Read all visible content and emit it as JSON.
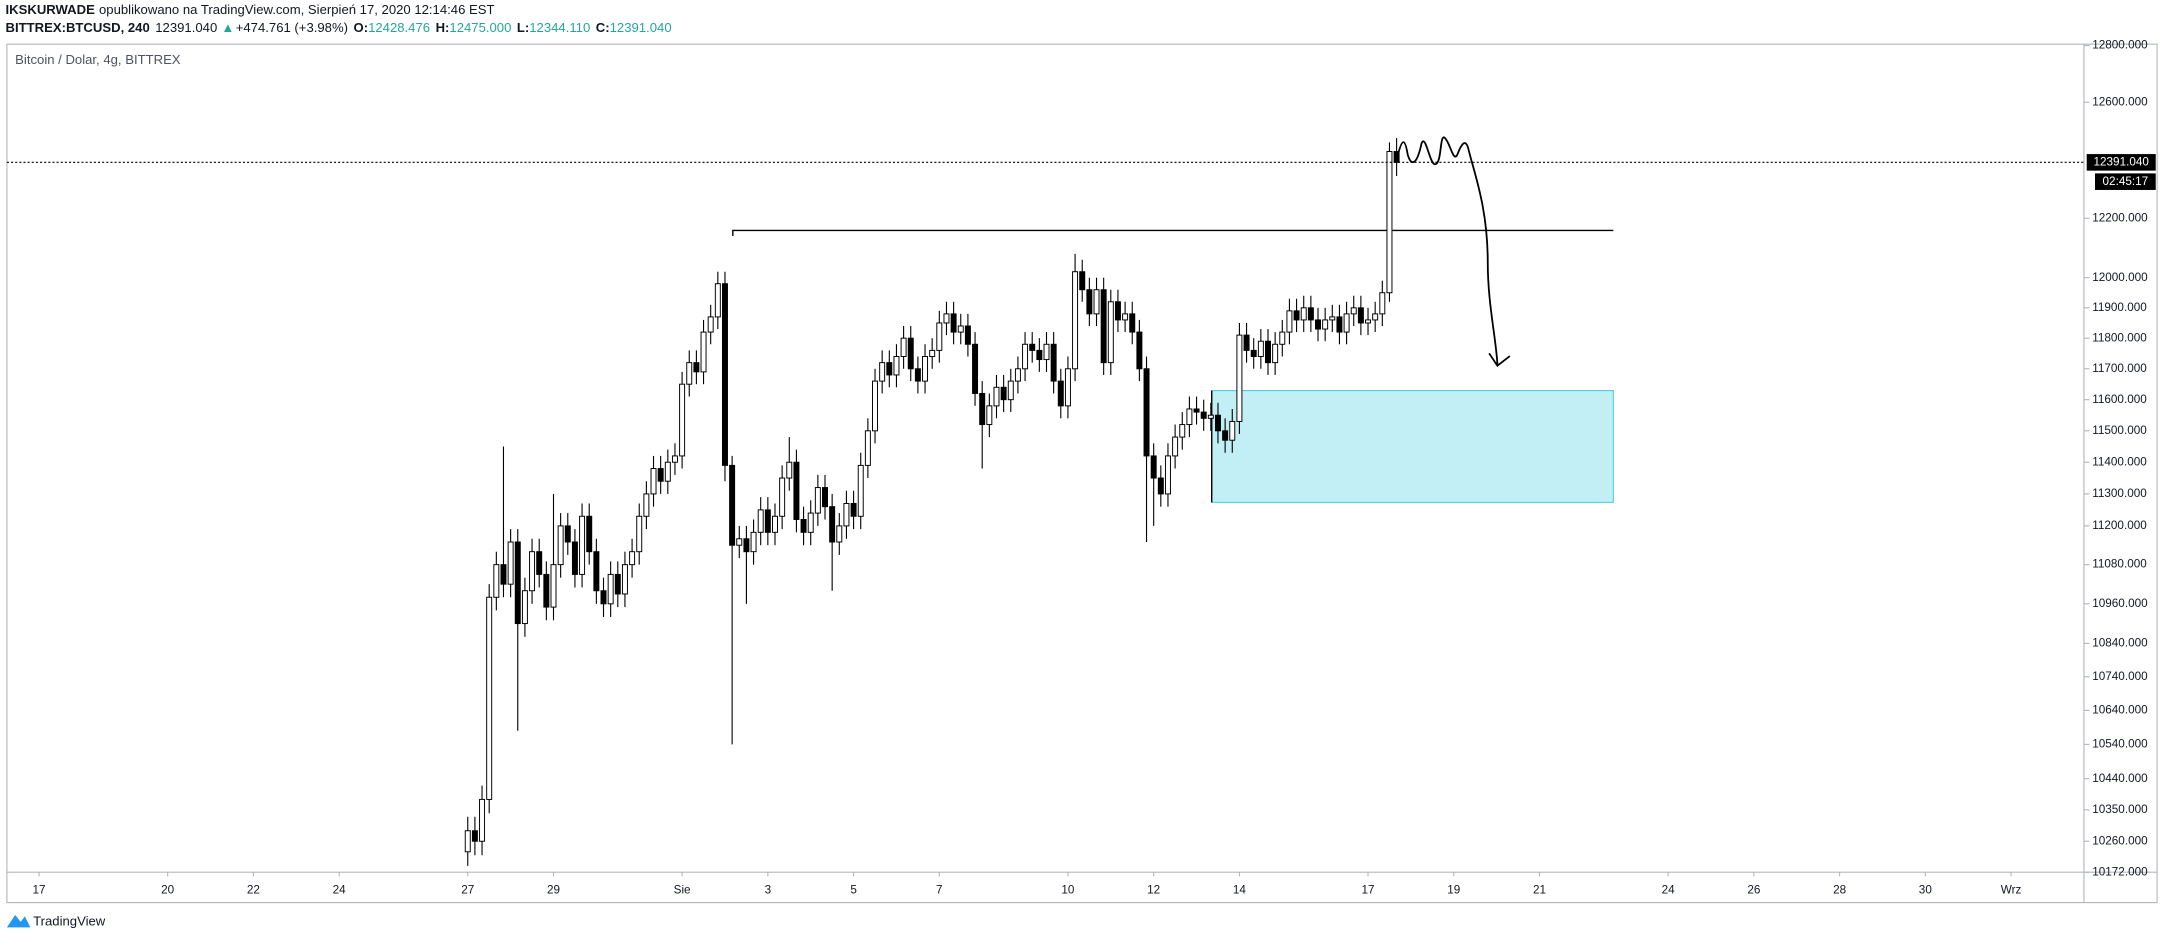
{
  "header": {
    "author": "IKSKURWADE",
    "published": "opublikowano na TradingView.com, Sierpień 17, 2020 12:14:46 EST",
    "symbol": "BITTREX:BTCUSD, 240",
    "price": "12391.040",
    "arrow": "▲",
    "change": "+474.761 (+3.98%)",
    "ohlc": [
      {
        "label": "O:",
        "value": "12428.476"
      },
      {
        "label": "H:",
        "value": "12475.000"
      },
      {
        "label": "L:",
        "value": "12344.110"
      },
      {
        "label": "C:",
        "value": "12391.040"
      }
    ]
  },
  "footer": {
    "brand": "TradingView"
  },
  "chart_data": {
    "type": "candlestick",
    "title": "Bitcoin / Dolar, 4g, BITTREX",
    "log_scale": true,
    "grid": false,
    "up_color": "#ffffff",
    "down_color": "#000000",
    "wick_color": "#000000",
    "xlim": [
      -64.5,
      226.2
    ],
    "ylim": [
      10172,
      12800
    ],
    "xticks": [
      {
        "value": -60,
        "label": "17"
      },
      {
        "value": -42,
        "label": "20"
      },
      {
        "value": -30,
        "label": "22"
      },
      {
        "value": -18,
        "label": "24"
      },
      {
        "value": 0,
        "label": "27"
      },
      {
        "value": 12,
        "label": "29"
      },
      {
        "value": 30,
        "label": "Sie"
      },
      {
        "value": 42,
        "label": "3"
      },
      {
        "value": 54,
        "label": "5"
      },
      {
        "value": 66,
        "label": "7"
      },
      {
        "value": 84,
        "label": "10"
      },
      {
        "value": 96,
        "label": "12"
      },
      {
        "value": 108,
        "label": "14"
      },
      {
        "value": 126,
        "label": "17"
      },
      {
        "value": 138,
        "label": "19"
      },
      {
        "value": 150,
        "label": "21"
      },
      {
        "value": 168,
        "label": "24"
      },
      {
        "value": 180,
        "label": "26"
      },
      {
        "value": 192,
        "label": "28"
      },
      {
        "value": 204,
        "label": "30"
      },
      {
        "value": 216,
        "label": "Wrz"
      }
    ],
    "yticks": [
      {
        "value": 12800,
        "label": "12800.000"
      },
      {
        "value": 12600,
        "label": "12600.000"
      },
      {
        "value": 12200,
        "label": "12200.000"
      },
      {
        "value": 12000,
        "label": "12000.000"
      },
      {
        "value": 11900,
        "label": "11900.000"
      },
      {
        "value": 11800,
        "label": "11800.000"
      },
      {
        "value": 11700,
        "label": "11700.000"
      },
      {
        "value": 11600,
        "label": "11600.000"
      },
      {
        "value": 11500,
        "label": "11500.000"
      },
      {
        "value": 11400,
        "label": "11400.000"
      },
      {
        "value": 11300,
        "label": "11300.000"
      },
      {
        "value": 11200,
        "label": "11200.000"
      },
      {
        "value": 11080,
        "label": "11080.000"
      },
      {
        "value": 10960,
        "label": "10960.000"
      },
      {
        "value": 10840,
        "label": "10840.000"
      },
      {
        "value": 10740,
        "label": "10740.000"
      },
      {
        "value": 10640,
        "label": "10640.000"
      },
      {
        "value": 10540,
        "label": "10540.000"
      },
      {
        "value": 10440,
        "label": "10440.000"
      },
      {
        "value": 10350,
        "label": "10350.000"
      },
      {
        "value": 10260,
        "label": "10260.000"
      },
      {
        "value": 10172,
        "label": "10172.000"
      }
    ],
    "last_price": {
      "value": 12391.04,
      "label": "12391.040"
    },
    "countdown": "02:45:17",
    "x": [
      0,
      1,
      2,
      3,
      4,
      5,
      6,
      7,
      8,
      9,
      10,
      11,
      12,
      13,
      14,
      15,
      16,
      17,
      18,
      19,
      20,
      21,
      22,
      23,
      24,
      25,
      26,
      27,
      28,
      29,
      30,
      31,
      32,
      33,
      34,
      35,
      36,
      37,
      38,
      39,
      40,
      41,
      42,
      43,
      44,
      45,
      46,
      47,
      48,
      49,
      50,
      51,
      52,
      53,
      54,
      55,
      56,
      57,
      58,
      59,
      60,
      61,
      62,
      63,
      64,
      65,
      66,
      67,
      68,
      69,
      70,
      71,
      72,
      73,
      74,
      75,
      76,
      77,
      78,
      79,
      80,
      81,
      82,
      83,
      84,
      85,
      86,
      87,
      88,
      89,
      90,
      91,
      92,
      93,
      94,
      95,
      96,
      97,
      98,
      99,
      100,
      101,
      102,
      103,
      104,
      105,
      106,
      107,
      108,
      109,
      110,
      111,
      112,
      113,
      114,
      115,
      116,
      117,
      118,
      119,
      120,
      121,
      122,
      123,
      124,
      125,
      126,
      127,
      128,
      129,
      130
    ],
    "open": [
      10230,
      10290,
      10260,
      10380,
      10980,
      11080,
      11020,
      11150,
      10900,
      11000,
      11120,
      11050,
      10950,
      11080,
      11200,
      11150,
      11050,
      11230,
      11120,
      11000,
      10960,
      11050,
      10990,
      11080,
      11120,
      11230,
      11300,
      11380,
      11340,
      11400,
      11420,
      11650,
      11720,
      11690,
      11820,
      11870,
      11980,
      11390,
      11140,
      11160,
      11120,
      11180,
      11250,
      11180,
      11230,
      11350,
      11400,
      11220,
      11180,
      11240,
      11320,
      11260,
      11150,
      11200,
      11270,
      11230,
      11390,
      11500,
      11660,
      11720,
      11680,
      11740,
      11800,
      11700,
      11660,
      11740,
      11760,
      11850,
      11880,
      11820,
      11840,
      11780,
      11620,
      11520,
      11580,
      11640,
      11600,
      11660,
      11700,
      11780,
      11760,
      11730,
      11780,
      11660,
      11580,
      11700,
      12020,
      11960,
      11880,
      11960,
      11720,
      11920,
      11860,
      11880,
      11820,
      11700,
      11420,
      11350,
      11300,
      11420,
      11480,
      11520,
      11570,
      11560,
      11540,
      11550,
      11500,
      11470,
      11530,
      11810,
      11760,
      11740,
      11790,
      11720,
      11780,
      11820,
      11890,
      11860,
      11900,
      11860,
      11830,
      11860,
      11870,
      11820,
      11880,
      11900,
      11850,
      11860,
      11880,
      11950,
      12428.476
    ],
    "high": [
      10330,
      10330,
      10420,
      11020,
      11120,
      11450,
      11190,
      11190,
      11040,
      11160,
      11160,
      11090,
      11300,
      11240,
      11240,
      11190,
      11270,
      11270,
      11160,
      11040,
      11090,
      11090,
      11120,
      11160,
      11270,
      11340,
      11420,
      11420,
      11440,
      11460,
      11690,
      11760,
      11760,
      11860,
      11910,
      12020,
      12020,
      11420,
      11200,
      11200,
      11220,
      11290,
      11290,
      11270,
      11390,
      11480,
      11440,
      11260,
      11280,
      11360,
      11360,
      11300,
      11240,
      11310,
      11310,
      11430,
      11540,
      11700,
      11760,
      11760,
      11780,
      11840,
      11840,
      11740,
      11780,
      11800,
      11890,
      11920,
      11920,
      11880,
      11880,
      11820,
      11660,
      11620,
      11680,
      11680,
      11700,
      11740,
      11820,
      11820,
      11800,
      11820,
      11820,
      11700,
      11740,
      12080,
      12060,
      12000,
      12000,
      12000,
      11960,
      11960,
      11920,
      11920,
      11860,
      11740,
      11460,
      11390,
      11460,
      11520,
      11560,
      11610,
      11610,
      11600,
      11590,
      11590,
      11540,
      11570,
      11850,
      11850,
      11800,
      11830,
      11830,
      11820,
      11860,
      11930,
      11930,
      11940,
      11940,
      11900,
      11900,
      11910,
      11910,
      11920,
      11940,
      11940,
      11900,
      11920,
      11990,
      12460,
      12475
    ],
    "low": [
      10190,
      10220,
      10220,
      10340,
      10940,
      10980,
      10980,
      10580,
      10860,
      10960,
      11010,
      10910,
      10910,
      11040,
      11110,
      11010,
      11010,
      11080,
      10960,
      10920,
      10920,
      10950,
      10950,
      11040,
      11080,
      11190,
      11260,
      11300,
      11300,
      11360,
      11380,
      11610,
      11650,
      11650,
      11780,
      11830,
      11340,
      10540,
      11100,
      10960,
      11080,
      11140,
      11140,
      11140,
      11190,
      11310,
      11180,
      11140,
      11140,
      11200,
      11220,
      11000,
      11110,
      11160,
      11190,
      11190,
      11350,
      11460,
      11620,
      11640,
      11640,
      11700,
      11660,
      11620,
      11620,
      11700,
      11720,
      11810,
      11780,
      11780,
      11740,
      11580,
      11380,
      11480,
      11540,
      11560,
      11560,
      11620,
      11660,
      11720,
      11690,
      11690,
      11620,
      11540,
      11540,
      11660,
      11920,
      11840,
      11840,
      11680,
      11680,
      11820,
      11820,
      11780,
      11660,
      11150,
      11200,
      11260,
      11260,
      11380,
      11440,
      11480,
      11520,
      11500,
      11500,
      11460,
      11430,
      11430,
      11490,
      11720,
      11700,
      11700,
      11680,
      11680,
      11740,
      11780,
      11820,
      11820,
      11820,
      11790,
      11790,
      11820,
      11780,
      11780,
      11840,
      11810,
      11810,
      11820,
      11840,
      11920,
      12344.11
    ],
    "close": [
      10290,
      10260,
      10380,
      10980,
      11080,
      11020,
      11150,
      10900,
      11000,
      11120,
      11050,
      10950,
      11080,
      11200,
      11150,
      11050,
      11230,
      11120,
      11000,
      10960,
      11050,
      10990,
      11080,
      11120,
      11230,
      11300,
      11380,
      11340,
      11400,
      11420,
      11650,
      11720,
      11690,
      11820,
      11870,
      11980,
      11390,
      11140,
      11160,
      11120,
      11180,
      11250,
      11180,
      11230,
      11350,
      11400,
      11220,
      11180,
      11240,
      11320,
      11260,
      11150,
      11200,
      11270,
      11230,
      11390,
      11500,
      11660,
      11720,
      11680,
      11740,
      11800,
      11700,
      11660,
      11740,
      11760,
      11850,
      11880,
      11820,
      11840,
      11780,
      11620,
      11520,
      11580,
      11640,
      11600,
      11660,
      11700,
      11780,
      11760,
      11730,
      11780,
      11660,
      11580,
      11700,
      12020,
      11960,
      11880,
      11960,
      11720,
      11920,
      11860,
      11880,
      11820,
      11700,
      11420,
      11350,
      11300,
      11420,
      11480,
      11520,
      11570,
      11560,
      11540,
      11550,
      11500,
      11470,
      11530,
      11810,
      11760,
      11740,
      11790,
      11720,
      11780,
      11820,
      11890,
      11860,
      11900,
      11860,
      11830,
      11860,
      11870,
      11820,
      11880,
      11900,
      11850,
      11860,
      11880,
      11950,
      12428.476,
      12391.04
    ]
  }
}
